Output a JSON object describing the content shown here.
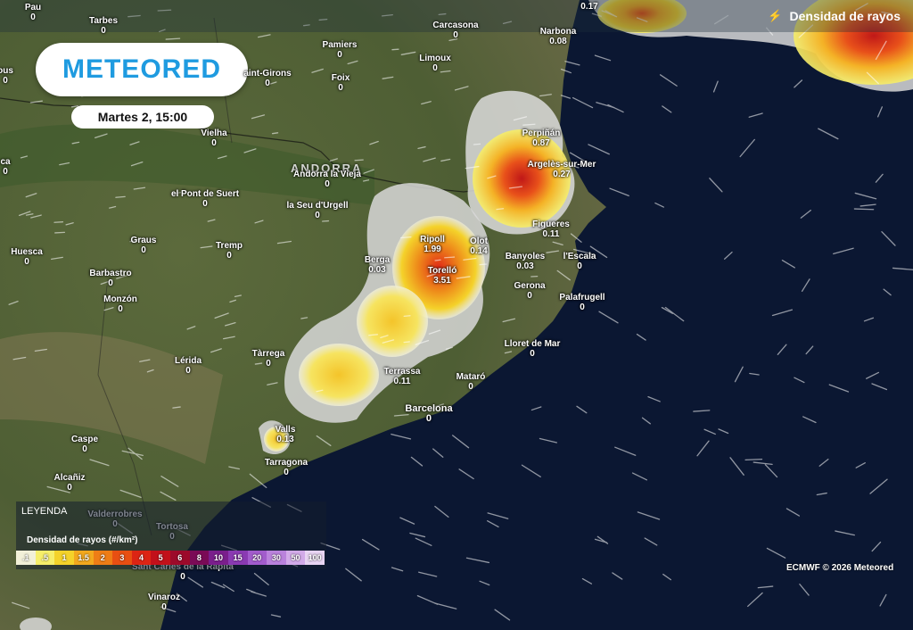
{
  "brand": {
    "name": "METEORED"
  },
  "time": "Martes 2, 15:00",
  "layer": {
    "title": "Densidad de rayos",
    "icon": "lightning-icon"
  },
  "country_label": "ANDORRA",
  "places": [
    {
      "name": "Pau",
      "value": "0"
    },
    {
      "name": "Tarbes",
      "value": "0"
    },
    {
      "name": "Carcasona",
      "value": "0"
    },
    {
      "name": "Narbona",
      "value": "0.08"
    },
    {
      "name": "Pamiers",
      "value": "0"
    },
    {
      "name": "Limoux",
      "value": "0"
    },
    {
      "name": "ous",
      "value": "0"
    },
    {
      "name": "aint-Girons",
      "value": "0"
    },
    {
      "name": "Foix",
      "value": "0"
    },
    {
      "name": "Vielha",
      "value": "0"
    },
    {
      "name": "ca",
      "value": "0"
    },
    {
      "name": "Perpiñán",
      "value": "0.87"
    },
    {
      "name": "Argelès-sur-Mer",
      "value": "0.27"
    },
    {
      "name": "Andorra la Vieja",
      "value": "0"
    },
    {
      "name": "el Pont de Suert",
      "value": "0"
    },
    {
      "name": "la Seu d'Urgell",
      "value": "0"
    },
    {
      "name": "Figueres",
      "value": "0.11"
    },
    {
      "name": "Graus",
      "value": "0"
    },
    {
      "name": "Tremp",
      "value": "0"
    },
    {
      "name": "Ripoll",
      "value": "1.99"
    },
    {
      "name": "Olot",
      "value": "0.14"
    },
    {
      "name": "Huesca",
      "value": "0"
    },
    {
      "name": "Barbastro",
      "value": "0"
    },
    {
      "name": "Berga",
      "value": "0.03"
    },
    {
      "name": "Torelló",
      "value": "3.51"
    },
    {
      "name": "Banyoles",
      "value": "0.03"
    },
    {
      "name": "l'Escala",
      "value": "0"
    },
    {
      "name": "Monzón",
      "value": "0"
    },
    {
      "name": "Gerona",
      "value": "0"
    },
    {
      "name": "Palafrugell",
      "value": "0"
    },
    {
      "name": "Lloret de Mar",
      "value": "0"
    },
    {
      "name": "Tàrrega",
      "value": "0"
    },
    {
      "name": "Lérida",
      "value": "0"
    },
    {
      "name": "Terrassa",
      "value": "0.11"
    },
    {
      "name": "Mataró",
      "value": "0"
    },
    {
      "name": "Barcelona",
      "value": "0"
    },
    {
      "name": "Valls",
      "value": "0.13"
    },
    {
      "name": "Caspe",
      "value": "0"
    },
    {
      "name": "Tarragona",
      "value": "0"
    },
    {
      "name": "Alcañiz",
      "value": "0"
    },
    {
      "name": "Valderrobres",
      "value": "0"
    },
    {
      "name": "Tortosa",
      "value": "0"
    },
    {
      "name": "Sant Carles de la Ràpita",
      "value": "0"
    },
    {
      "name": "Vinaroz",
      "value": "0"
    },
    {
      "name": "",
      "value": "0.17"
    }
  ],
  "legend": {
    "header": "LEYENDA",
    "title": "Densidad de rayos (#/km²)",
    "steps": [
      {
        "label": ".1",
        "color": "#f2f0d8"
      },
      {
        "label": ".5",
        "color": "#f6ee6a"
      },
      {
        "label": "1",
        "color": "#f4d22a"
      },
      {
        "label": "1.5",
        "color": "#f2a81e"
      },
      {
        "label": "2",
        "color": "#ee7d16"
      },
      {
        "label": "3",
        "color": "#e84f12"
      },
      {
        "label": "4",
        "color": "#dc2414"
      },
      {
        "label": "5",
        "color": "#c2101a"
      },
      {
        "label": "6",
        "color": "#9c0a2a"
      },
      {
        "label": "8",
        "color": "#7a0a56"
      },
      {
        "label": "10",
        "color": "#7a1e8c"
      },
      {
        "label": "15",
        "color": "#8a3ab2"
      },
      {
        "label": "20",
        "color": "#a25ccc"
      },
      {
        "label": "30",
        "color": "#ba82dc"
      },
      {
        "label": "50",
        "color": "#d2aae8"
      },
      {
        "label": "100",
        "color": "#e8d4f2"
      }
    ]
  },
  "credit": "ECMWF © 2026 Meteored"
}
